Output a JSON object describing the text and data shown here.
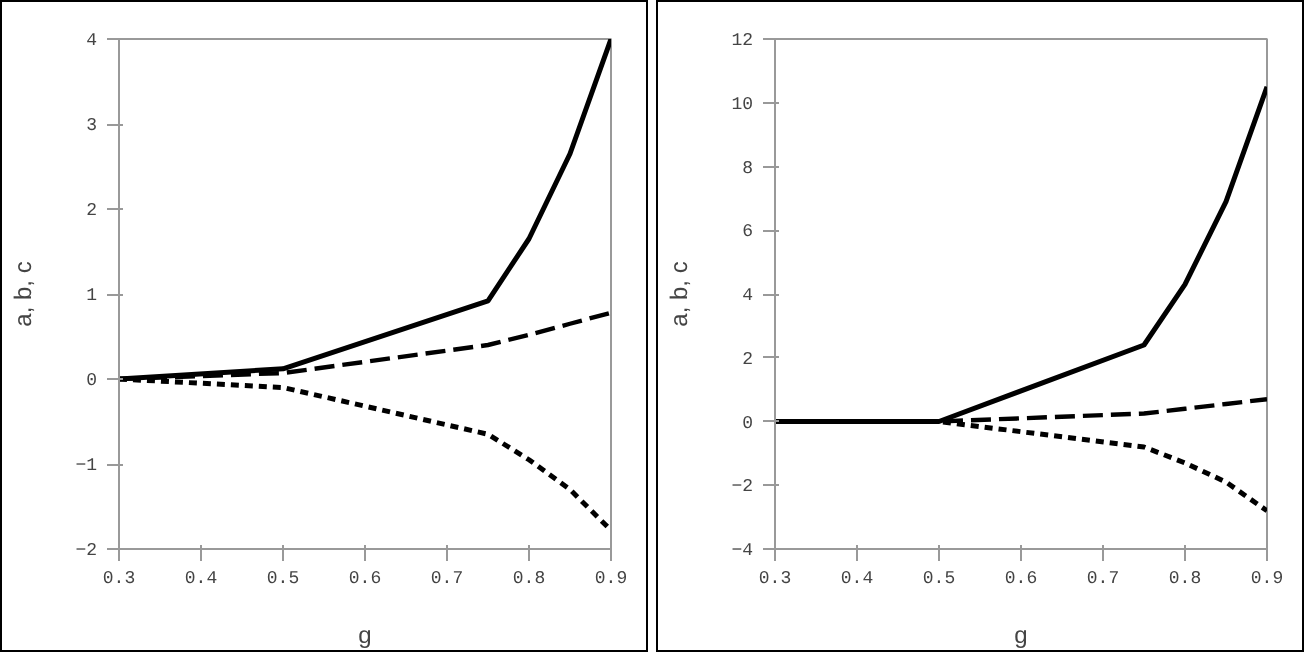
{
  "chart_data": [
    {
      "type": "line",
      "xlabel": "g",
      "ylabel": "a, b, c",
      "x": [
        0.3,
        0.5,
        0.75,
        0.8,
        0.85,
        0.9
      ],
      "xlim": [
        0.3,
        0.9
      ],
      "xticks": [
        0.3,
        0.4,
        0.5,
        0.6,
        0.7,
        0.8,
        0.9
      ],
      "ylim": [
        -2,
        4
      ],
      "yticks": [
        -2,
        -1,
        0,
        1,
        2,
        3,
        4
      ],
      "grid": false,
      "marker": "none",
      "series": [
        {
          "color": "#000000",
          "line_style": "solid",
          "values": [
            0,
            0.12,
            0.92,
            1.65,
            2.65,
            4.0
          ]
        },
        {
          "color": "#000000",
          "line_style": "dashed",
          "values": [
            0,
            0.07,
            0.4,
            0.52,
            0.65,
            0.78
          ]
        },
        {
          "color": "#000000",
          "line_style": "dotted",
          "values": [
            0,
            -0.1,
            -0.65,
            -0.95,
            -1.3,
            -1.78
          ]
        }
      ]
    },
    {
      "type": "line",
      "xlabel": "g",
      "ylabel": "a, b, c",
      "x": [
        0.3,
        0.5,
        0.75,
        0.8,
        0.85,
        0.9
      ],
      "xlim": [
        0.3,
        0.9
      ],
      "xticks": [
        0.3,
        0.4,
        0.5,
        0.6,
        0.7,
        0.8,
        0.9
      ],
      "ylim": [
        -4,
        12
      ],
      "yticks": [
        -4,
        -2,
        0,
        2,
        4,
        6,
        8,
        10,
        12
      ],
      "grid": false,
      "marker": "none",
      "series": [
        {
          "color": "#000000",
          "line_style": "solid",
          "values": [
            0,
            0,
            2.4,
            4.3,
            6.9,
            10.5
          ]
        },
        {
          "color": "#000000",
          "line_style": "dashed",
          "values": [
            0,
            0,
            0.25,
            0.4,
            0.55,
            0.7
          ]
        },
        {
          "color": "#000000",
          "line_style": "dotted",
          "values": [
            0,
            0,
            -0.8,
            -1.3,
            -1.9,
            -2.8
          ]
        }
      ]
    }
  ]
}
